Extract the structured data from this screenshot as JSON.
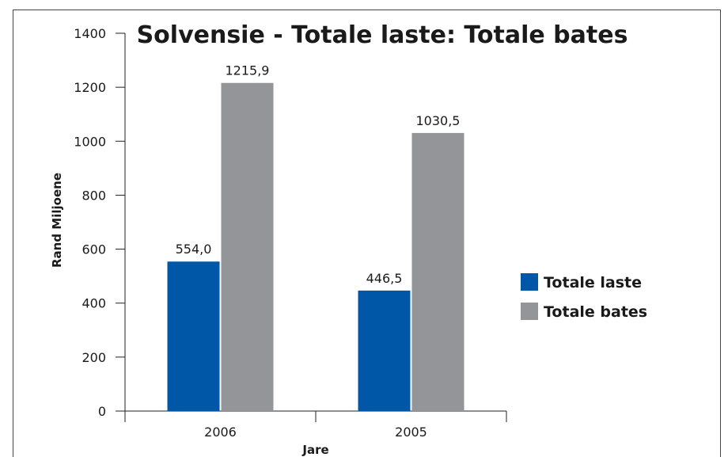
{
  "chart_data": {
    "type": "bar",
    "title": "Solvensie - Totale laste: Totale bates",
    "xlabel": "Jare",
    "ylabel": "Rand Miljoene",
    "categories": [
      "2006",
      "2005"
    ],
    "series": [
      {
        "name": "Totale laste",
        "values": [
          554.0,
          446.5
        ],
        "value_labels": [
          "554,0",
          "446,5"
        ],
        "color": "#0057a8"
      },
      {
        "name": "Totale bates",
        "values": [
          1215.9,
          1030.5
        ],
        "value_labels": [
          "1215,9",
          "1030,5"
        ],
        "color": "#939598"
      }
    ],
    "ylim": [
      0,
      1400
    ],
    "y_ticks": [
      0,
      200,
      400,
      600,
      800,
      1000,
      1200,
      1400
    ],
    "y_tick_labels": [
      "0",
      "200",
      "400",
      "600",
      "800",
      "1000",
      "1200",
      "1400"
    ],
    "grid": false,
    "legend_position": "right"
  },
  "colors": {
    "axis": "#222222",
    "frame": "#444444",
    "text": "#1a1a1a"
  }
}
